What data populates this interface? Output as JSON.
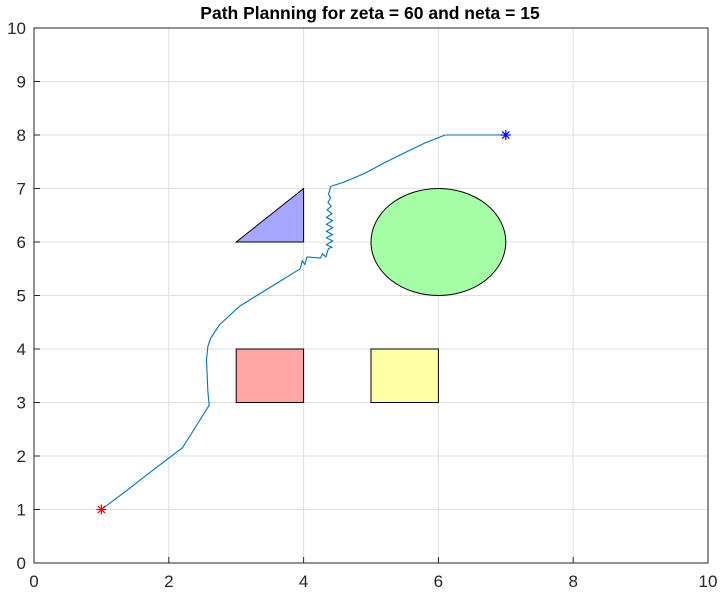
{
  "chart_data": {
    "type": "line",
    "title": "Path Planning for zeta = 60 and neta = 15",
    "xlabel": "",
    "ylabel": "",
    "xlim": [
      0,
      10
    ],
    "ylim": [
      0,
      10
    ],
    "x_ticks": [
      "0",
      "2",
      "4",
      "6",
      "8",
      "10"
    ],
    "y_ticks": [
      "0",
      "1",
      "2",
      "3",
      "4",
      "5",
      "6",
      "7",
      "8",
      "9",
      "10"
    ],
    "grid": true,
    "path": {
      "color": "#0072BD",
      "points": [
        [
          1.0,
          1.0
        ],
        [
          1.4,
          1.38
        ],
        [
          1.8,
          1.77
        ],
        [
          2.2,
          2.15
        ],
        [
          2.55,
          2.85
        ],
        [
          2.6,
          2.95
        ],
        [
          2.58,
          3.2
        ],
        [
          2.57,
          3.5
        ],
        [
          2.56,
          3.8
        ],
        [
          2.58,
          4.05
        ],
        [
          2.62,
          4.2
        ],
        [
          2.75,
          4.45
        ],
        [
          3.05,
          4.8
        ],
        [
          3.5,
          5.15
        ],
        [
          3.95,
          5.5
        ],
        [
          3.98,
          5.65
        ],
        [
          4.02,
          5.58
        ],
        [
          4.05,
          5.72
        ],
        [
          4.25,
          5.7
        ],
        [
          4.28,
          5.78
        ],
        [
          4.33,
          5.72
        ],
        [
          4.37,
          5.88
        ],
        [
          4.42,
          5.9
        ],
        [
          4.34,
          5.95
        ],
        [
          4.43,
          6.02
        ],
        [
          4.34,
          6.08
        ],
        [
          4.43,
          6.14
        ],
        [
          4.34,
          6.2
        ],
        [
          4.43,
          6.27
        ],
        [
          4.34,
          6.33
        ],
        [
          4.43,
          6.4
        ],
        [
          4.34,
          6.46
        ],
        [
          4.42,
          6.53
        ],
        [
          4.35,
          6.6
        ],
        [
          4.41,
          6.67
        ],
        [
          4.36,
          6.74
        ],
        [
          4.4,
          6.82
        ],
        [
          4.37,
          6.9
        ],
        [
          4.39,
          6.98
        ],
        [
          4.4,
          7.04
        ],
        [
          4.6,
          7.12
        ],
        [
          4.9,
          7.28
        ],
        [
          5.2,
          7.48
        ],
        [
          5.5,
          7.67
        ],
        [
          5.8,
          7.85
        ],
        [
          6.1,
          8.0
        ],
        [
          6.5,
          8.0
        ],
        [
          7.0,
          8.0
        ]
      ]
    },
    "start_marker": {
      "x": 1,
      "y": 1,
      "color": "#ff0000"
    },
    "goal_marker": {
      "x": 7,
      "y": 8,
      "color": "#0000ff"
    },
    "obstacles": [
      {
        "shape": "triangle",
        "points": [
          [
            3,
            6
          ],
          [
            4,
            6
          ],
          [
            4,
            7
          ]
        ],
        "fill": "#a6a6ff"
      },
      {
        "shape": "ellipse",
        "center": [
          6,
          6
        ],
        "rx": 1,
        "ry": 1,
        "fill": "#a6ffa6"
      },
      {
        "shape": "rectangle",
        "x0": 3,
        "y0": 3,
        "x1": 4,
        "y1": 4,
        "fill": "#ffa6a6"
      },
      {
        "shape": "rectangle",
        "x0": 5,
        "y0": 3,
        "x1": 6,
        "y1": 4,
        "fill": "#ffffa6"
      }
    ]
  }
}
